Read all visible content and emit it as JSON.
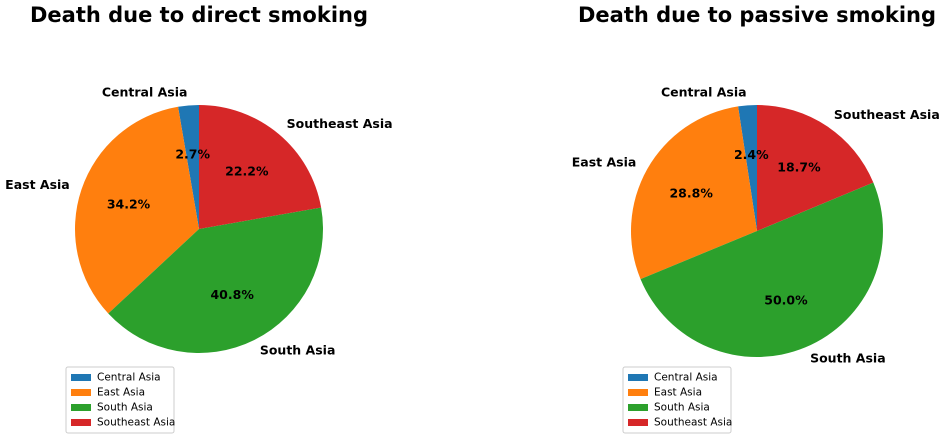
{
  "chart_data": [
    {
      "type": "pie",
      "title": "Death due to direct smoking",
      "slices": [
        {
          "label": "Central Asia",
          "value": 2.7,
          "pct_label": "2.7%",
          "color": "#1f77b4"
        },
        {
          "label": "East Asia",
          "value": 34.2,
          "pct_label": "34.2%",
          "color": "#ff7f0e"
        },
        {
          "label": "South Asia",
          "value": 40.8,
          "pct_label": "40.8%",
          "color": "#2ca02c"
        },
        {
          "label": "Southeast Asia",
          "value": 22.2,
          "pct_label": "22.2%",
          "color": "#d62728"
        }
      ],
      "start_angle_deg": 90,
      "direction": "counterclockwise",
      "legend": {
        "placement": "lower-left",
        "entries": [
          "Central Asia",
          "East Asia",
          "South Asia",
          "Southeast Asia"
        ]
      }
    },
    {
      "type": "pie",
      "title": "Death due to passive smoking",
      "slices": [
        {
          "label": "Central Asia",
          "value": 2.4,
          "pct_label": "2.4%",
          "color": "#1f77b4"
        },
        {
          "label": "East Asia",
          "value": 28.8,
          "pct_label": "28.8%",
          "color": "#ff7f0e"
        },
        {
          "label": "South Asia",
          "value": 50.0,
          "pct_label": "50.0%",
          "color": "#2ca02c"
        },
        {
          "label": "Southeast Asia",
          "value": 18.7,
          "pct_label": "18.7%",
          "color": "#d62728"
        }
      ],
      "start_angle_deg": 90,
      "direction": "counterclockwise",
      "legend": {
        "placement": "lower-left",
        "entries": [
          "Central Asia",
          "East Asia",
          "South Asia",
          "Southeast Asia"
        ]
      }
    }
  ]
}
